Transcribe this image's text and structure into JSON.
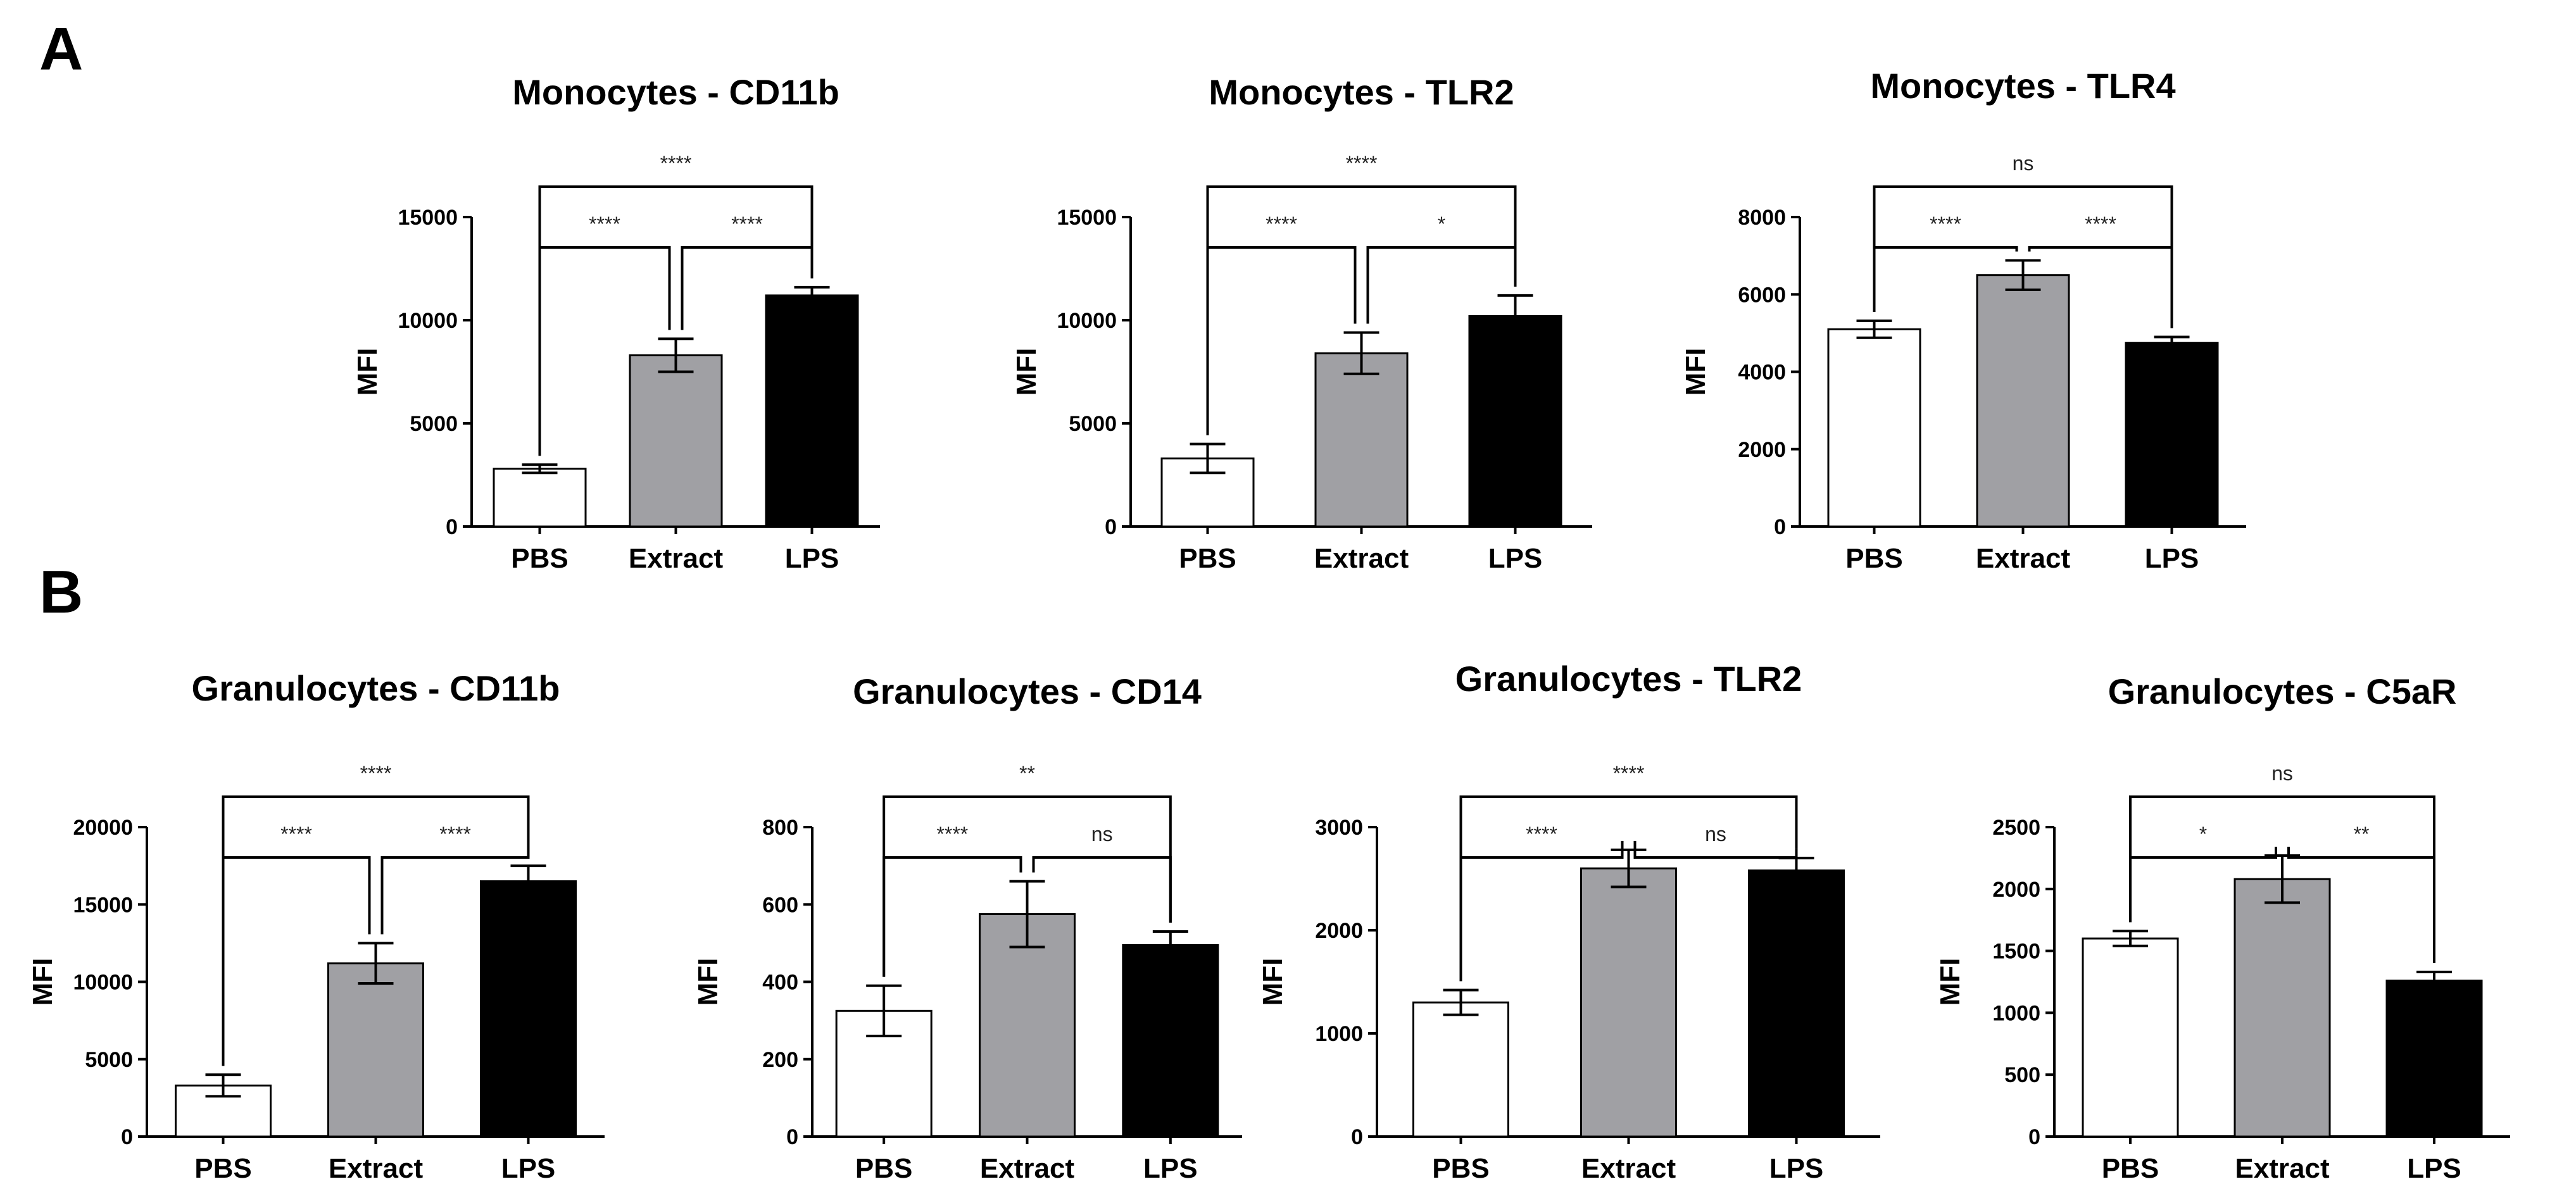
{
  "panels": [
    {
      "letter": "A"
    },
    {
      "letter": "B"
    }
  ],
  "colors": {
    "PBS": "#ffffff",
    "Extract": "#a0a0a4",
    "LPS": "#000000",
    "axis": "#000000"
  },
  "chart_data": [
    {
      "type": "bar",
      "panel": "A",
      "title": "Monocytes - CD11b",
      "ylabel": "MFI",
      "xlabel": "",
      "categories": [
        "PBS",
        "Extract",
        "LPS"
      ],
      "values": [
        2800,
        8300,
        11200
      ],
      "errors": [
        200,
        800,
        400
      ],
      "ylim": [
        0,
        15000
      ],
      "yticks": [
        0,
        5000,
        10000,
        15000
      ],
      "ytick_labels": [
        "0",
        "5000",
        "10000",
        "15000"
      ],
      "comparisons": [
        {
          "from": 1,
          "to": 2,
          "label": "****",
          "level": 1
        },
        {
          "from": 2,
          "to": 3,
          "label": "****",
          "level": 1
        },
        {
          "from": 1,
          "to": 3,
          "label": "****",
          "level": 2
        }
      ]
    },
    {
      "type": "bar",
      "panel": "A",
      "title": "Monocytes - TLR2",
      "ylabel": "MFI",
      "xlabel": "",
      "categories": [
        "PBS",
        "Extract",
        "LPS"
      ],
      "values": [
        3300,
        8400,
        10200
      ],
      "errors": [
        700,
        1000,
        1000
      ],
      "ylim": [
        0,
        15000
      ],
      "yticks": [
        0,
        5000,
        10000,
        15000
      ],
      "ytick_labels": [
        "0",
        "5000",
        "10000",
        "15000"
      ],
      "comparisons": [
        {
          "from": 1,
          "to": 2,
          "label": "****",
          "level": 1
        },
        {
          "from": 2,
          "to": 3,
          "label": "*",
          "level": 1
        },
        {
          "from": 1,
          "to": 3,
          "label": "****",
          "level": 2
        }
      ]
    },
    {
      "type": "bar",
      "panel": "A",
      "title": "Monocytes - TLR4",
      "ylabel": "MFI",
      "xlabel": "",
      "categories": [
        "PBS",
        "Extract",
        "LPS"
      ],
      "values": [
        5100,
        6500,
        4750
      ],
      "errors": [
        220,
        380,
        150
      ],
      "ylim": [
        0,
        8000
      ],
      "yticks": [
        0,
        2000,
        4000,
        6000,
        8000
      ],
      "ytick_labels": [
        "0",
        "2000",
        "4000",
        "6000",
        "8000"
      ],
      "comparisons": [
        {
          "from": 1,
          "to": 2,
          "label": "****",
          "level": 1
        },
        {
          "from": 2,
          "to": 3,
          "label": "****",
          "level": 1
        },
        {
          "from": 1,
          "to": 3,
          "label": "ns",
          "level": 2
        }
      ]
    },
    {
      "type": "bar",
      "panel": "B",
      "title": "Granulocytes - CD11b",
      "ylabel": "MFI",
      "xlabel": "",
      "categories": [
        "PBS",
        "Extract",
        "LPS"
      ],
      "values": [
        3300,
        11200,
        16500
      ],
      "errors": [
        700,
        1300,
        1000
      ],
      "ylim": [
        0,
        20000
      ],
      "yticks": [
        0,
        5000,
        10000,
        15000,
        20000
      ],
      "ytick_labels": [
        "0",
        "5000",
        "10000",
        "15000",
        "20000"
      ],
      "comparisons": [
        {
          "from": 1,
          "to": 2,
          "label": "****",
          "level": 1
        },
        {
          "from": 2,
          "to": 3,
          "label": "****",
          "level": 1
        },
        {
          "from": 1,
          "to": 3,
          "label": "****",
          "level": 2
        }
      ]
    },
    {
      "type": "bar",
      "panel": "B",
      "title": "Granulocytes - CD14",
      "ylabel": "MFI",
      "xlabel": "",
      "categories": [
        "PBS",
        "Extract",
        "LPS"
      ],
      "values": [
        325,
        575,
        495
      ],
      "errors": [
        65,
        85,
        35
      ],
      "ylim": [
        0,
        800
      ],
      "yticks": [
        0,
        200,
        400,
        600,
        800
      ],
      "ytick_labels": [
        "0",
        "200",
        "400",
        "600",
        "800"
      ],
      "comparisons": [
        {
          "from": 1,
          "to": 2,
          "label": "****",
          "level": 1
        },
        {
          "from": 2,
          "to": 3,
          "label": "ns",
          "level": 1
        },
        {
          "from": 1,
          "to": 3,
          "label": "**",
          "level": 2
        }
      ]
    },
    {
      "type": "bar",
      "panel": "B",
      "title": "Granulocytes - TLR2",
      "ylabel": "MFI",
      "xlabel": "",
      "categories": [
        "PBS",
        "Extract",
        "LPS"
      ],
      "values": [
        1300,
        2600,
        2580
      ],
      "errors": [
        120,
        180,
        120
      ],
      "ylim": [
        0,
        3000
      ],
      "yticks": [
        0,
        1000,
        2000,
        3000
      ],
      "ytick_labels": [
        "0",
        "1000",
        "2000",
        "3000"
      ],
      "comparisons": [
        {
          "from": 1,
          "to": 2,
          "label": "****",
          "level": 1
        },
        {
          "from": 2,
          "to": 3,
          "label": "ns",
          "level": 1
        },
        {
          "from": 1,
          "to": 3,
          "label": "****",
          "level": 2
        }
      ]
    },
    {
      "type": "bar",
      "panel": "B",
      "title": "Granulocytes - C5aR",
      "ylabel": "MFI",
      "xlabel": "",
      "categories": [
        "PBS",
        "Extract",
        "LPS"
      ],
      "values": [
        1600,
        2080,
        1260
      ],
      "errors": [
        60,
        190,
        70
      ],
      "ylim": [
        0,
        2500
      ],
      "yticks": [
        0,
        500,
        1000,
        1500,
        2000,
        2500
      ],
      "ytick_labels": [
        "0",
        "500",
        "1000",
        "1500",
        "2000",
        "2500"
      ],
      "comparisons": [
        {
          "from": 1,
          "to": 2,
          "label": "*",
          "level": 1
        },
        {
          "from": 2,
          "to": 3,
          "label": "**",
          "level": 1
        },
        {
          "from": 1,
          "to": 3,
          "label": "ns",
          "level": 2
        }
      ]
    }
  ]
}
